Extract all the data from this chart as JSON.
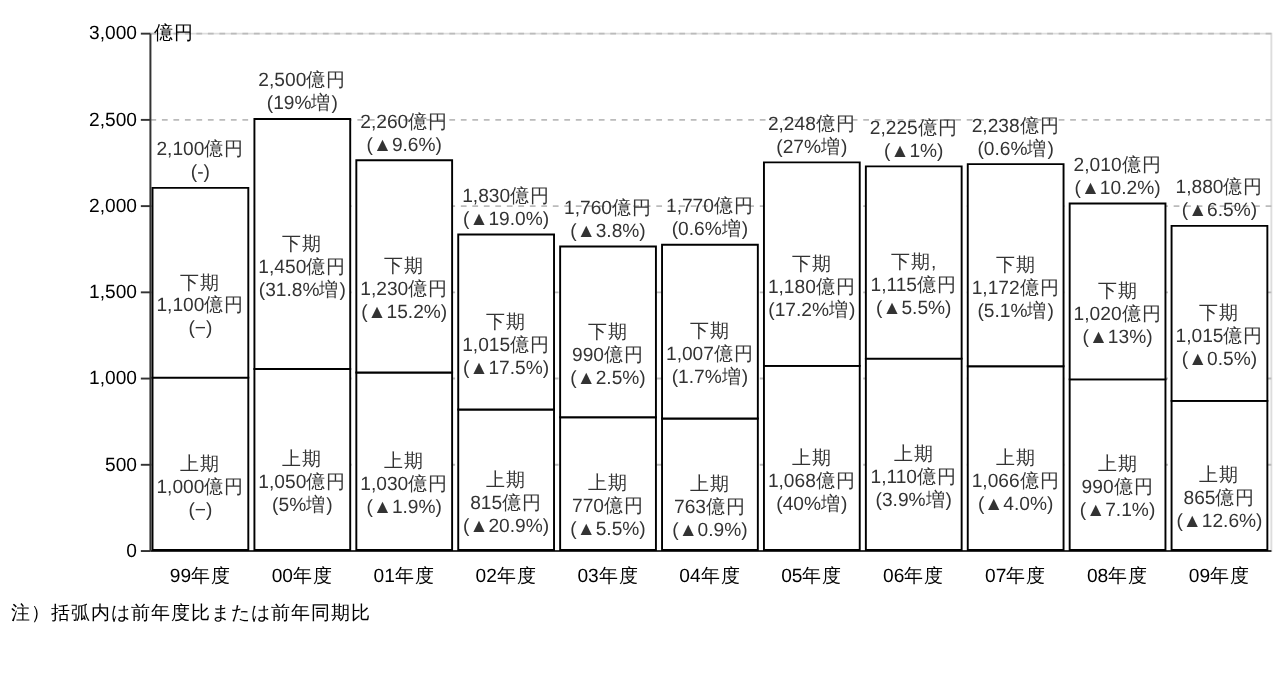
{
  "chart_data": {
    "type": "bar",
    "stacked": true,
    "ylabel": "億円",
    "categories": [
      "99年度",
      "00年度",
      "01年度",
      "02年度",
      "03年度",
      "04年度",
      "05年度",
      "06年度",
      "07年度",
      "08年度",
      "09年度"
    ],
    "series": [
      {
        "color": "#ffffff",
        "values": [
          1000,
          1050,
          1030,
          815,
          770,
          763,
          1068,
          1110,
          1066,
          990,
          865
        ],
        "value_labels": [
          "上期\n1,000億円\n(−)",
          "上期\n1,050億円\n(5%増)",
          "上期\n1,030億円\n(▲1.9%)",
          "上期\n815億円\n(▲20.9%)",
          "上期\n770億円\n(▲5.5%)",
          "上期\n763億円\n(▲0.9%)",
          "上期\n1,068億円\n(40%増)",
          "上期\n1,110億円\n(3.9%増)",
          "上期\n1,066億円\n(▲4.0%)",
          "上期\n990億円\n(▲7.1%)",
          "上期\n865億円\n(▲12.6%)"
        ]
      },
      {
        "color": "#ffffff",
        "values": [
          1100,
          1450,
          1230,
          1015,
          990,
          1007,
          1180,
          1115,
          1172,
          1020,
          1015
        ],
        "value_labels": [
          "下期\n1,100億円\n(−)",
          "下期\n1,450億円\n(31.8%増)",
          "下期\n1,230億円\n(▲15.2%)",
          "下期\n1,015億円\n(▲17.5%)",
          "下期\n990億円\n(▲2.5%)",
          "下期\n1,007億円\n(1.7%増)",
          "下期\n1,180億円\n(17.2%増)",
          "下期,\n1,115億円\n(▲5.5%)",
          "下期\n1,172億円\n(5.1%増)",
          "下期\n1,020億円\n(▲13%)",
          "下期\n1,015億円\n(▲0.5%)"
        ]
      }
    ],
    "totals": [
      "2,100億円\n(-)",
      "2,500億円\n(19%増)",
      "2,260億円\n(▲9.6%)",
      "1,830億円\n(▲19.0%)",
      "1,760億円\n(▲3.8%)",
      "1,770億円\n(0.6%増)",
      "2,248億円\n(27%増)",
      "2,225億円\n(▲1%)",
      "2,238億円\n(0.6%増)",
      "2,010億円\n(▲10.2%)",
      "1,880億円\n(▲6.5%)"
    ],
    "ylim": [
      0,
      3000
    ],
    "yticks": [
      0,
      500,
      {
        "value": 1000,
        "label": "1,000"
      },
      {
        "value": 1500,
        "label": "1,500"
      },
      {
        "value": 2000,
        "label": "2,000"
      },
      {
        "value": 2500,
        "label": "2,500"
      },
      {
        "value": 3000,
        "label": "3,000"
      }
    ],
    "grid": "y",
    "annotations": [
      "注）括弧内は前年度比または前年同期比"
    ]
  }
}
